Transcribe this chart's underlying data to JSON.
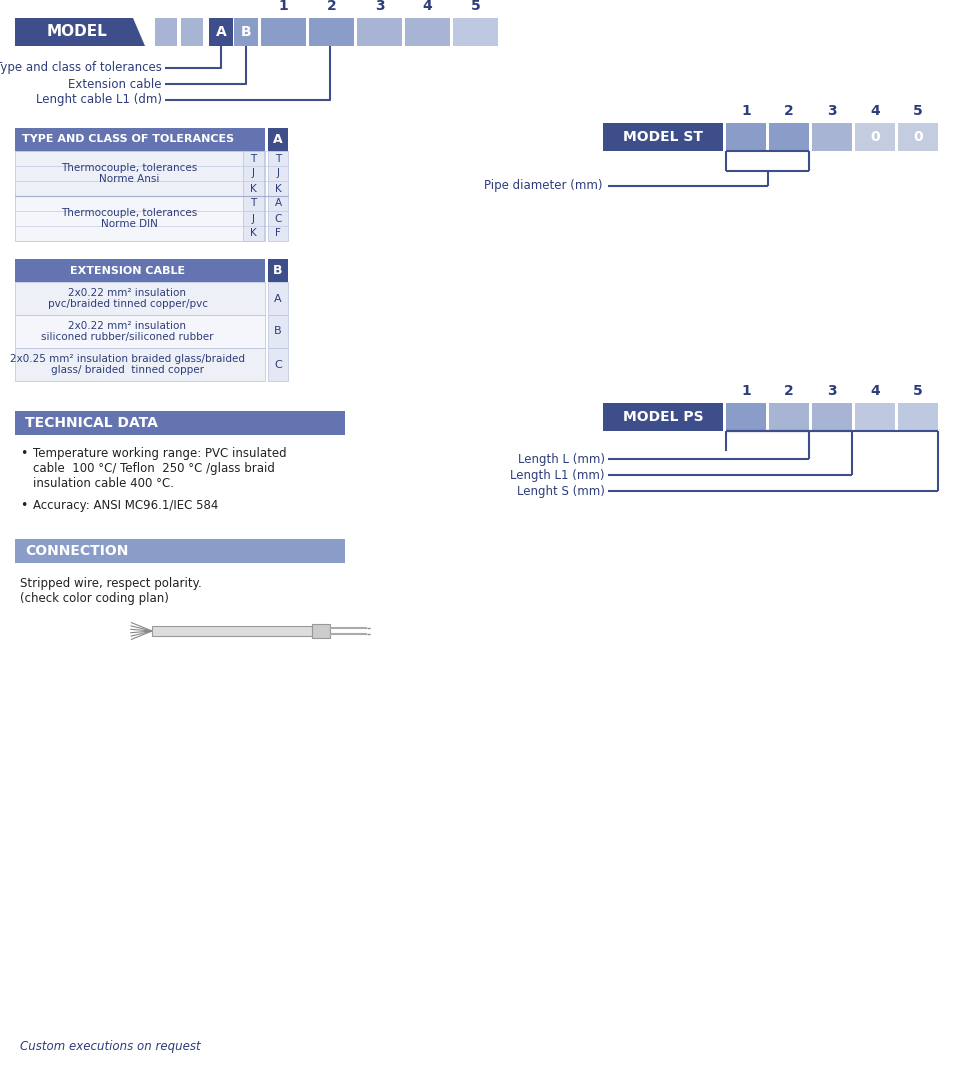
{
  "dark_blue": "#3d4e8a",
  "mid_blue": "#6474b0",
  "light_blue1": "#8a9cc8",
  "light_blue2": "#a8b4d4",
  "light_blue3": "#bec8e0",
  "light_blue4": "#d0d8ee",
  "text_blue": "#2d3d7a",
  "table_bg1": "#eef0f8",
  "table_bg2": "#f5f6fb",
  "cell_bg": "#e4e8f4",
  "cell_border": "#b8c0dc",
  "model_label": "MODEL",
  "model_st_label": "MODEL ST",
  "model_ps_label": "MODEL PS",
  "numbers": [
    "1",
    "2",
    "3",
    "4",
    "5"
  ],
  "model_labels_below": [
    "Type and class of tolerances",
    "Extension cable",
    "Lenght cable L1 (dm)"
  ],
  "tol_header": "TYPE AND CLASS OF TOLERANCES",
  "ansi_desc": "Thermocouple, tolerances\nNorme Ansi",
  "ansi_codes_left": [
    "T",
    "J",
    "K"
  ],
  "ansi_codes_right": [
    "T",
    "J",
    "K"
  ],
  "din_desc": "Thermocouple, tolerances\nNorme DIN",
  "din_codes_left": [
    "T",
    "J",
    "K"
  ],
  "din_codes_right": [
    "A",
    "C",
    "F"
  ],
  "ext_header": "EXTENSION CABLE",
  "ext_rows": [
    {
      "desc": "2x0.22 mm² insulation\npvc/braided tinned copper/pvc",
      "code": "A"
    },
    {
      "desc": "2x0.22 mm² insulation\nsiliconed rubber/siliconed rubber",
      "code": "B"
    },
    {
      "desc": "2x0.25 mm² insulation braided glass/braided\nglass/ braided  tinned copper",
      "code": "C"
    }
  ],
  "tech_header": "TECHNICAL DATA",
  "tech_bullet1": "Temperature working range: PVC insulated\ncable  100 °C/ Teflon  250 °C /glass braid\ninsulation cable 400 °C.",
  "tech_bullet2": "Accuracy: ANSI MC96.1/IEC 584",
  "conn_header": "CONNECTION",
  "conn_text": "Stripped wire, respect polarity.\n(check color coding plan)",
  "st_label_below": "Pipe diameter (mm)",
  "ps_labels_below": [
    "Length L (mm)",
    "Length L1 (mm)",
    "Lenght S (mm)"
  ],
  "footer": "Custom executions on request"
}
